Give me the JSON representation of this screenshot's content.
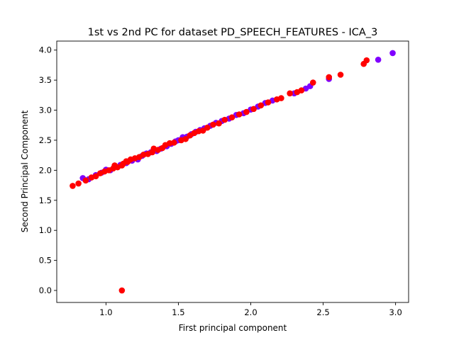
{
  "chart_data": {
    "type": "scatter",
    "title": "1st vs 2nd PC for dataset PD_SPEECH_FEATURES - ICA_3",
    "xlabel": "First principal component",
    "ylabel": "Second Principal Component",
    "xlim": [
      0.66,
      3.09
    ],
    "ylim": [
      -0.2,
      4.15
    ],
    "xticks": [
      1.0,
      1.5,
      2.0,
      2.5,
      3.0
    ],
    "xtick_labels": [
      "1.0",
      "1.5",
      "2.0",
      "2.5",
      "3.0"
    ],
    "yticks": [
      0.0,
      0.5,
      1.0,
      1.5,
      2.0,
      2.5,
      3.0,
      3.5,
      4.0
    ],
    "ytick_labels": [
      "0.0",
      "0.5",
      "1.0",
      "1.5",
      "2.0",
      "2.5",
      "3.0",
      "3.5",
      "4.0"
    ],
    "grid": false,
    "legend": "none",
    "colors": {
      "class_a": "#8000ff",
      "class_b": "#ff0000"
    },
    "series": [
      {
        "color": "#8000ff",
        "points": [
          [
            0.84,
            1.87
          ],
          [
            0.88,
            1.85
          ],
          [
            0.93,
            1.92
          ],
          [
            0.97,
            1.96
          ],
          [
            1.0,
            2.01
          ],
          [
            1.03,
            2.0
          ],
          [
            1.06,
            2.06
          ],
          [
            1.1,
            2.09
          ],
          [
            1.14,
            2.12
          ],
          [
            1.18,
            2.16
          ],
          [
            1.22,
            2.18
          ],
          [
            1.25,
            2.24
          ],
          [
            1.28,
            2.28
          ],
          [
            1.31,
            2.3
          ],
          [
            1.35,
            2.32
          ],
          [
            1.38,
            2.36
          ],
          [
            1.42,
            2.4
          ],
          [
            1.45,
            2.44
          ],
          [
            1.48,
            2.48
          ],
          [
            1.5,
            2.5
          ],
          [
            1.53,
            2.55
          ],
          [
            1.56,
            2.56
          ],
          [
            1.59,
            2.6
          ],
          [
            1.62,
            2.64
          ],
          [
            1.65,
            2.67
          ],
          [
            1.68,
            2.7
          ],
          [
            1.72,
            2.74
          ],
          [
            1.76,
            2.79
          ],
          [
            1.8,
            2.82
          ],
          [
            1.85,
            2.86
          ],
          [
            1.9,
            2.92
          ],
          [
            1.95,
            2.95
          ],
          [
            2.0,
            3.01
          ],
          [
            2.05,
            3.06
          ],
          [
            2.1,
            3.12
          ],
          [
            2.15,
            3.16
          ],
          [
            2.3,
            3.28
          ],
          [
            2.38,
            3.36
          ],
          [
            2.41,
            3.4
          ],
          [
            2.54,
            3.52
          ],
          [
            2.88,
            3.84
          ],
          [
            2.98,
            3.95
          ]
        ]
      },
      {
        "color": "#ff0000",
        "points": [
          [
            0.77,
            1.74
          ],
          [
            0.81,
            1.78
          ],
          [
            0.86,
            1.83
          ],
          [
            0.9,
            1.88
          ],
          [
            0.93,
            1.9
          ],
          [
            0.96,
            1.95
          ],
          [
            0.99,
            1.98
          ],
          [
            1.02,
            2.0
          ],
          [
            1.05,
            2.03
          ],
          [
            1.08,
            2.05
          ],
          [
            1.11,
            2.08
          ],
          [
            1.12,
            2.11
          ],
          [
            1.15,
            2.14
          ],
          [
            1.17,
            2.18
          ],
          [
            1.2,
            2.2
          ],
          [
            1.23,
            2.22
          ],
          [
            1.26,
            2.26
          ],
          [
            1.29,
            2.27
          ],
          [
            1.32,
            2.3
          ],
          [
            1.36,
            2.34
          ],
          [
            1.39,
            2.37
          ],
          [
            1.41,
            2.42
          ],
          [
            1.44,
            2.45
          ],
          [
            1.47,
            2.46
          ],
          [
            1.52,
            2.5
          ],
          [
            1.55,
            2.52
          ],
          [
            1.58,
            2.58
          ],
          [
            1.61,
            2.62
          ],
          [
            1.64,
            2.65
          ],
          [
            1.67,
            2.66
          ],
          [
            1.7,
            2.71
          ],
          [
            1.74,
            2.76
          ],
          [
            1.78,
            2.78
          ],
          [
            1.82,
            2.84
          ],
          [
            1.87,
            2.88
          ],
          [
            1.92,
            2.93
          ],
          [
            1.97,
            2.97
          ],
          [
            2.02,
            3.02
          ],
          [
            2.07,
            3.08
          ],
          [
            2.12,
            3.13
          ],
          [
            2.18,
            3.18
          ],
          [
            2.21,
            3.2
          ],
          [
            2.27,
            3.28
          ],
          [
            2.32,
            3.3
          ],
          [
            2.35,
            3.33
          ],
          [
            2.43,
            3.46
          ],
          [
            2.54,
            3.55
          ],
          [
            2.62,
            3.59
          ],
          [
            2.78,
            3.77
          ],
          [
            2.8,
            3.83
          ],
          [
            1.11,
            0.0
          ],
          [
            1.06,
            2.08
          ],
          [
            1.14,
            2.15
          ],
          [
            1.33,
            2.36
          ]
        ]
      }
    ]
  }
}
